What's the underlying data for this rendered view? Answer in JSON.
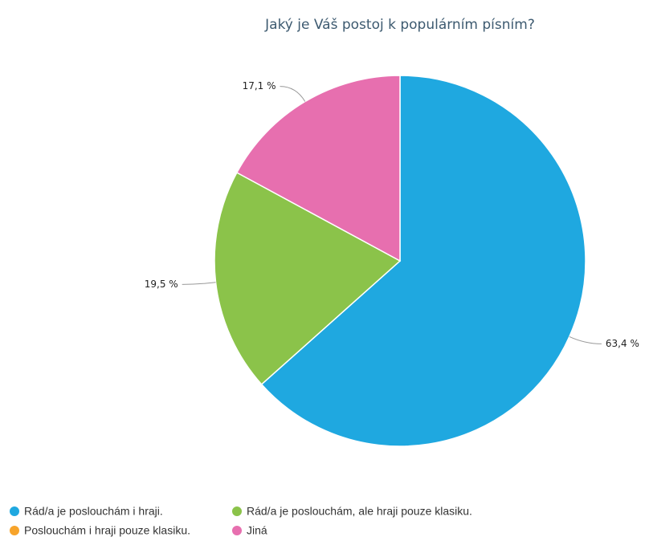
{
  "chart_data": {
    "type": "pie",
    "title": "Jaký je Váš postoj k populárním písním?",
    "categories": [
      "Rád/a je poslouchám i hraji.",
      "Rád/a je poslouchám, ale hraji pouze klasiku.",
      "Poslouchám i hraji pouze klasiku.",
      "Jiná"
    ],
    "values": [
      63.4,
      19.5,
      0,
      17.1
    ],
    "value_labels": [
      "63,4 %",
      "19,5 %",
      null,
      "17,1 %"
    ],
    "colors": [
      "#1fa8e0",
      "#8bc34a",
      "#f7a42b",
      "#e76faf"
    ],
    "legend": "bottom"
  }
}
